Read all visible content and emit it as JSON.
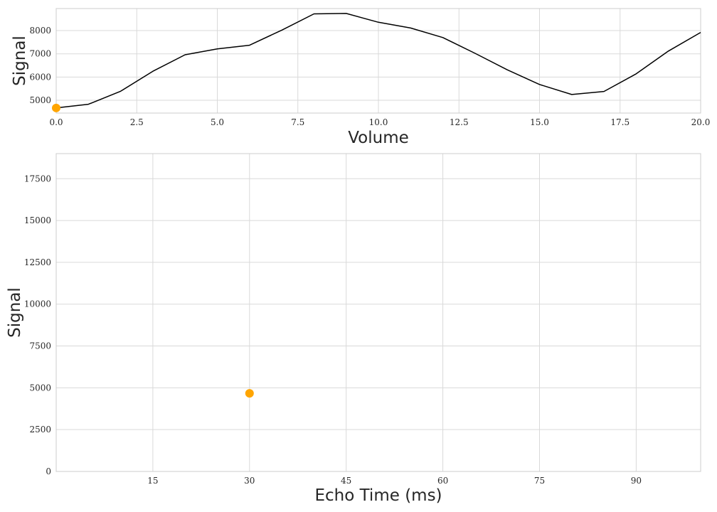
{
  "chart_data": [
    {
      "type": "line",
      "xlabel": "Volume",
      "ylabel": "Signal",
      "xlim": [
        0,
        20
      ],
      "ylim": [
        4450,
        8950
      ],
      "xticks": [
        0,
        2.5,
        5,
        7.5,
        10,
        12.5,
        15,
        17.5,
        20
      ],
      "xtick_labels": [
        "0.0",
        "2.5",
        "5.0",
        "7.5",
        "10.0",
        "12.5",
        "15.0",
        "17.5",
        "20.0"
      ],
      "yticks": [
        5000,
        6000,
        7000,
        8000
      ],
      "ytick_labels": [
        "5000",
        "6000",
        "7000",
        "8000"
      ],
      "grid": true,
      "series": [
        {
          "color": "#000000",
          "x": [
            0,
            1,
            2,
            3,
            4,
            5,
            6,
            7,
            8,
            9,
            10,
            11,
            12,
            13,
            14,
            15,
            16,
            17,
            18,
            19,
            20
          ],
          "y": [
            4670,
            4830,
            5390,
            6250,
            6960,
            7210,
            7370,
            8020,
            8720,
            8740,
            8360,
            8110,
            7700,
            7020,
            6310,
            5680,
            5250,
            5380,
            6140,
            7120,
            7920
          ]
        }
      ],
      "highlight_point": {
        "x": 0,
        "y": 4670,
        "color": "#ffa500"
      }
    },
    {
      "type": "scatter",
      "xlabel": "Echo Time (ms)",
      "ylabel": "Signal",
      "xlim": [
        0,
        100
      ],
      "ylim": [
        0,
        19000
      ],
      "xticks": [
        15,
        30,
        45,
        60,
        75,
        90
      ],
      "xtick_labels": [
        "15",
        "30",
        "45",
        "60",
        "75",
        "90"
      ],
      "yticks": [
        0,
        2500,
        5000,
        7500,
        10000,
        12500,
        15000,
        17500
      ],
      "ytick_labels": [
        "0",
        "2500",
        "5000",
        "7500",
        "10000",
        "12500",
        "15000",
        "17500"
      ],
      "grid": true,
      "series": [
        {
          "color": "#ffa500",
          "x": [
            30
          ],
          "y": [
            4670
          ]
        }
      ]
    }
  ]
}
